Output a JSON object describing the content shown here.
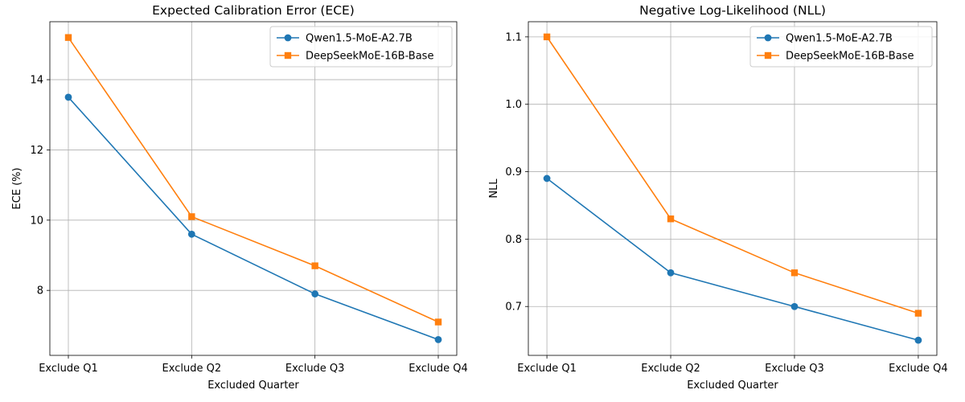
{
  "colors": {
    "series1": "#1f77b4",
    "series2": "#ff7f0e",
    "grid": "#b0b0b0",
    "axis": "#000000"
  },
  "chart_data": [
    {
      "type": "line",
      "title": "Expected Calibration Error (ECE)",
      "xlabel": "Excluded Quarter",
      "ylabel": "ECE (%)",
      "categories": [
        "Exclude Q1",
        "Exclude Q2",
        "Exclude Q3",
        "Exclude Q4"
      ],
      "ylim": [
        6.15,
        15.65
      ],
      "yticks": [
        8,
        10,
        12,
        14
      ],
      "ytick_labels": [
        "8",
        "10",
        "12",
        "14"
      ],
      "grid": true,
      "legend": "upper-right",
      "series": [
        {
          "name": "Qwen1.5-MoE-A2.7B",
          "marker": "circle",
          "values": [
            13.5,
            9.6,
            7.9,
            6.6
          ]
        },
        {
          "name": "DeepSeekMoE-16B-Base",
          "marker": "square",
          "values": [
            15.2,
            10.1,
            8.7,
            7.1
          ]
        }
      ]
    },
    {
      "type": "line",
      "title": "Negative Log-Likelihood (NLL)",
      "xlabel": "Excluded Quarter",
      "ylabel": "NLL",
      "categories": [
        "Exclude Q1",
        "Exclude Q2",
        "Exclude Q3",
        "Exclude Q4"
      ],
      "ylim": [
        0.6275,
        1.1225
      ],
      "yticks": [
        0.7,
        0.8,
        0.9,
        1.0,
        1.1
      ],
      "ytick_labels": [
        "0.7",
        "0.8",
        "0.9",
        "1.0",
        "1.1"
      ],
      "grid": true,
      "legend": "upper-right",
      "series": [
        {
          "name": "Qwen1.5-MoE-A2.7B",
          "marker": "circle",
          "values": [
            0.89,
            0.75,
            0.7,
            0.65
          ]
        },
        {
          "name": "DeepSeekMoE-16B-Base",
          "marker": "square",
          "values": [
            1.1,
            0.83,
            0.75,
            0.69
          ]
        }
      ]
    }
  ]
}
